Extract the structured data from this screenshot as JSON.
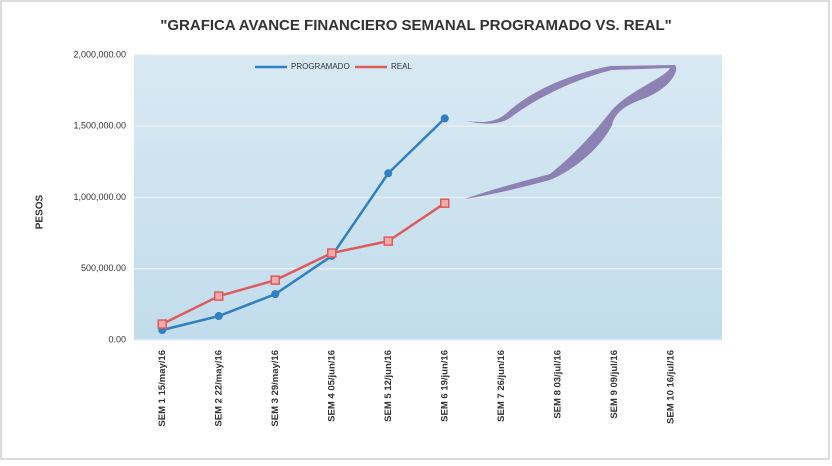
{
  "chart_data": {
    "type": "line",
    "title": "\"GRAFICA AVANCE FINANCIERO  SEMANAL PROGRAMADO VS. REAL\"",
    "y_label": "PESOS",
    "categories": [
      "SEM 1 15/may/16",
      "SEM 2 22/may/16",
      "SEM 3 29/may/16",
      "SEM 4 05/jun/16",
      "SEM 5 12/jun/16",
      "SEM 6 19/jun/16",
      "SEM 7 26/jun/16",
      "SEM 8 03/jul/16",
      "SEM 9 09/jul/16",
      "SEM 10 16/jul/16"
    ],
    "series": [
      {
        "name": "PROGRAMADO",
        "color": "#2f7fc1",
        "values": [
          70000,
          168000,
          322000,
          590000,
          1170000,
          1555000,
          null,
          null,
          null,
          null
        ]
      },
      {
        "name": "REAL",
        "color": "#de5b5b",
        "values": [
          112000,
          308000,
          420000,
          610000,
          694000,
          960000,
          null,
          null,
          null,
          null
        ]
      }
    ],
    "ylim": [
      0,
      2000000
    ],
    "yticks": [
      {
        "value": 0,
        "label": "0.00"
      },
      {
        "value": 500000,
        "label": "500,000.00"
      },
      {
        "value": 1000000,
        "label": "1,000,000.00"
      },
      {
        "value": 1500000,
        "label": "1,500,000.00"
      },
      {
        "value": 2000000,
        "label": "2,000,000.00"
      }
    ],
    "grid": true,
    "legend": "top"
  }
}
